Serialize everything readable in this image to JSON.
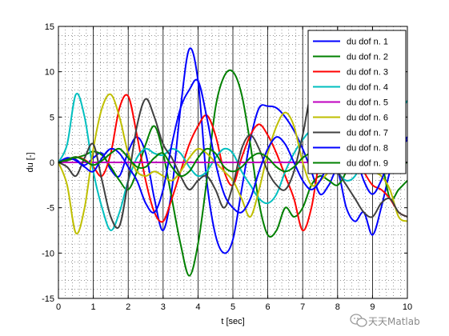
{
  "chart_data": {
    "type": "line",
    "xlabel": "t [sec]",
    "ylabel": "du [-]",
    "xlim": [
      0,
      10
    ],
    "ylim": [
      -15,
      15
    ],
    "xticks": [
      0,
      1,
      2,
      3,
      4,
      5,
      6,
      7,
      8,
      9,
      10
    ],
    "yticks": [
      -15,
      -10,
      -5,
      0,
      5,
      10,
      15
    ],
    "xtick_labels": [
      "0",
      "1",
      "2",
      "3",
      "4",
      "5",
      "6",
      "7",
      "8",
      "9",
      "10"
    ],
    "ytick_labels": [
      "-15",
      "-10",
      "-5",
      "0",
      "5",
      "10",
      "15"
    ],
    "grid": "dotted minor, solid major x",
    "legend_position": "top-right",
    "series": [
      {
        "name": "du dof n. 1",
        "color": "#0000ff",
        "x": [
          0,
          0.25,
          0.5,
          0.75,
          1,
          1.25,
          1.5,
          1.75,
          2,
          2.25,
          2.5,
          2.75,
          3,
          3.25,
          3.5,
          3.75,
          4,
          4.25,
          4.5,
          4.75,
          5,
          5.25,
          5.5,
          5.75,
          6,
          6.25,
          6.5,
          6.75,
          7,
          7.25,
          7.5,
          7.75,
          8,
          8.25,
          8.5,
          8.75,
          9,
          9.25,
          9.5,
          9.75,
          10
        ],
        "y": [
          0,
          0.4,
          0.3,
          -0.3,
          0.5,
          1.0,
          -0.8,
          -1.5,
          1.2,
          2.8,
          1.0,
          -4.0,
          -7.5,
          -3.0,
          6.0,
          12.5,
          9.0,
          -2.0,
          -8.0,
          -10.0,
          -8.5,
          -3.0,
          2.5,
          6.0,
          6.2,
          6.0,
          5.0,
          3.5,
          1.5,
          -1.0,
          -3.5,
          -2.5,
          -1.0,
          -5.0,
          -6.5,
          -5.5,
          -8.0,
          -5.0,
          -1.0,
          1.5,
          2.8
        ]
      },
      {
        "name": "du dof n. 2",
        "color": "#008000",
        "x": [
          0,
          0.25,
          0.5,
          0.75,
          1,
          1.25,
          1.5,
          1.75,
          2,
          2.25,
          2.5,
          2.75,
          3,
          3.25,
          3.5,
          3.75,
          4,
          4.25,
          4.5,
          4.75,
          5,
          5.25,
          5.5,
          5.75,
          6,
          6.25,
          6.5,
          6.75,
          7,
          7.25,
          7.5,
          7.75,
          8,
          8.25,
          8.5,
          8.75,
          9,
          9.25,
          9.5,
          9.75,
          10
        ],
        "y": [
          0,
          0.2,
          0.5,
          0.8,
          1.2,
          0.8,
          -0.5,
          -2.0,
          -3.0,
          -1.0,
          2.0,
          4.0,
          1.0,
          -4.0,
          -9.0,
          -12.5,
          -9.0,
          -2.0,
          6.0,
          9.5,
          10.0,
          7.5,
          2.0,
          -4.5,
          -8.0,
          -7.5,
          -5.0,
          -6.0,
          -5.0,
          -2.5,
          -1.5,
          -2.0,
          -2.5,
          -1.0,
          1.5,
          3.5,
          4.0,
          0.5,
          -4.0,
          -3.0,
          -2.0
        ]
      },
      {
        "name": "du dof n. 3",
        "color": "#ff0000",
        "x": [
          0,
          0.25,
          0.5,
          0.75,
          1,
          1.25,
          1.5,
          1.75,
          2,
          2.25,
          2.5,
          2.75,
          3,
          3.25,
          3.5,
          3.75,
          4,
          4.25,
          4.5,
          4.75,
          5,
          5.25,
          5.5,
          5.75,
          6,
          6.25,
          6.5,
          6.75,
          7,
          7.25,
          7.5,
          7.75,
          8,
          8.25,
          8.5,
          8.75,
          9,
          9.25,
          9.5,
          9.75,
          10
        ],
        "y": [
          0,
          0.3,
          0.6,
          0.3,
          -0.5,
          -1.5,
          1.0,
          6.0,
          7.3,
          3.0,
          -2.0,
          -5.5,
          -6.5,
          -4.0,
          -1.0,
          2.0,
          4.0,
          5.2,
          3.0,
          -1.0,
          -2.5,
          0.5,
          3.0,
          4.2,
          3.0,
          1.0,
          -1.5,
          -4.0,
          -7.5,
          -5.0,
          0.5,
          2.0,
          2.5,
          2.0,
          1.0,
          -1.0,
          -2.5,
          -3.0,
          -4.0,
          -5.5,
          -6.0
        ]
      },
      {
        "name": "du dof n. 4",
        "color": "#00bfbf",
        "x": [
          0,
          0.25,
          0.5,
          0.75,
          1,
          1.25,
          1.5,
          1.75,
          2,
          2.25,
          2.5,
          2.75,
          3,
          3.25,
          3.5,
          3.75,
          4,
          4.25,
          4.5,
          4.75,
          5,
          5.25,
          5.5,
          5.75,
          6,
          6.25,
          6.5,
          6.75,
          7,
          7.25,
          7.5,
          7.75,
          8,
          8.25,
          8.5,
          8.75,
          9,
          9.25,
          9.5,
          9.75,
          10
        ],
        "y": [
          0,
          2.0,
          7.5,
          5.0,
          -1.0,
          -5.0,
          -7.5,
          -5.5,
          -2.0,
          0.5,
          1.5,
          1.0,
          0.8,
          1.5,
          1.0,
          -0.5,
          -1.5,
          -1.0,
          0.5,
          1.5,
          1.0,
          -1.0,
          -2.5,
          -4.0,
          -4.5,
          -3.5,
          -1.0,
          1.0,
          2.5,
          3.5,
          3.0,
          1.0,
          -1.0,
          -2.0,
          -1.5,
          0.5,
          2.5,
          3.5,
          4.0,
          5.5,
          6.8
        ]
      },
      {
        "name": "du dof n. 5",
        "color": "#bf00bf",
        "x": [
          0,
          1,
          2,
          3,
          4,
          5,
          6,
          7,
          8,
          9,
          10
        ],
        "y": [
          0,
          0,
          0,
          0,
          0,
          0,
          0,
          0,
          0,
          0,
          0
        ]
      },
      {
        "name": "du dof n. 6",
        "color": "#bfbf00",
        "x": [
          0,
          0.25,
          0.5,
          0.75,
          1,
          1.25,
          1.5,
          1.75,
          2,
          2.25,
          2.5,
          2.75,
          3,
          3.25,
          3.5,
          3.75,
          4,
          4.25,
          4.5,
          4.75,
          5,
          5.25,
          5.5,
          5.75,
          6,
          6.25,
          6.5,
          6.75,
          7,
          7.25,
          7.5,
          7.75,
          8,
          8.25,
          8.5,
          8.75,
          9,
          9.25,
          9.5,
          9.75,
          10
        ],
        "y": [
          0,
          -2.5,
          -7.8,
          -5.0,
          1.5,
          6.0,
          7.5,
          5.0,
          1.0,
          -1.0,
          -1.5,
          -1.0,
          -1.5,
          -2.0,
          -1.0,
          0.5,
          1.5,
          1.0,
          0.0,
          -1.0,
          -2.0,
          -4.0,
          -6.0,
          -3.0,
          1.0,
          4.0,
          5.5,
          4.0,
          0.0,
          -2.5,
          -2.0,
          -1.0,
          0.5,
          1.5,
          1.0,
          -0.5,
          -1.0,
          -1.5,
          -3.0,
          -6.0,
          -6.5
        ]
      },
      {
        "name": "du dof n. 7",
        "color": "#404040",
        "x": [
          0,
          0.25,
          0.5,
          0.75,
          1,
          1.25,
          1.5,
          1.75,
          2,
          2.25,
          2.5,
          2.75,
          3,
          3.25,
          3.5,
          3.75,
          4,
          4.25,
          4.5,
          4.75,
          5,
          5.25,
          5.5,
          5.75,
          6,
          6.25,
          6.5,
          6.75,
          7,
          7.25,
          7.5,
          7.75,
          8,
          8.25,
          8.5,
          8.75,
          9,
          9.25,
          9.5,
          9.75,
          10
        ],
        "y": [
          0,
          -0.5,
          -1.5,
          0.5,
          2.0,
          -2.0,
          -6.0,
          -7.0,
          -2.0,
          4.0,
          7.0,
          5.0,
          2.0,
          0.5,
          -1.5,
          -3.0,
          -2.0,
          -1.5,
          -3.0,
          -5.0,
          -2.5,
          1.5,
          3.0,
          1.5,
          -1.0,
          -2.5,
          -3.0,
          -1.0,
          3.0,
          7.5,
          5.5,
          1.0,
          -1.0,
          -2.5,
          -4.0,
          -5.5,
          -6.0,
          -4.5,
          -4.0,
          -5.5,
          -6.0
        ]
      },
      {
        "name": "du dof n. 8",
        "color": "#0000ff",
        "x": [
          0,
          0.25,
          0.5,
          0.75,
          1,
          1.25,
          1.5,
          1.75,
          2,
          2.25,
          2.5,
          2.75,
          3,
          3.25,
          3.5,
          3.75,
          4,
          4.25,
          4.5,
          4.75,
          5,
          5.25,
          5.5,
          5.75,
          6,
          6.25,
          6.5,
          6.75,
          7,
          7.25,
          7.5,
          7.75,
          8,
          8.25,
          8.5,
          8.75,
          9,
          9.25,
          9.5,
          9.75,
          10
        ],
        "y": [
          0,
          0.5,
          0.2,
          -0.5,
          -1.0,
          0.5,
          1.5,
          1.0,
          -0.5,
          -2.0,
          -4.5,
          -5.5,
          -3.0,
          2.0,
          6.0,
          8.0,
          9.0,
          5.0,
          0.0,
          -3.5,
          -5.0,
          -5.5,
          -4.0,
          -1.0,
          1.5,
          2.8,
          2.0,
          0.0,
          -2.0,
          -3.0,
          -2.0,
          0.0,
          2.0,
          3.0,
          1.0,
          -2.0,
          -3.5,
          -2.0,
          0.5,
          1.5,
          2.5
        ]
      },
      {
        "name": "du dof n. 9",
        "color": "#008000",
        "x": [
          0,
          0.25,
          0.5,
          0.75,
          1,
          1.25,
          1.5,
          1.75,
          2,
          2.25,
          2.5,
          2.75,
          3,
          3.25,
          3.5,
          3.75,
          4,
          4.25,
          4.5,
          4.75,
          5,
          5.25,
          5.5,
          5.75,
          6,
          6.25,
          6.5,
          6.75,
          7,
          7.25,
          7.5,
          7.75,
          8,
          8.25,
          8.5,
          8.75,
          9,
          9.25,
          9.5,
          9.75,
          10
        ],
        "y": [
          0,
          0.3,
          0.6,
          0.2,
          -0.3,
          0.2,
          1.0,
          1.5,
          0.5,
          -0.5,
          -0.5,
          0.5,
          1.0,
          -0.5,
          -1.5,
          -1.0,
          0.5,
          1.5,
          1.0,
          -0.5,
          -1.0,
          -0.5,
          0.5,
          1.0,
          0.5,
          -0.5,
          -1.0,
          -0.5,
          0.5,
          1.0,
          0.5,
          -0.5,
          -1.0,
          -0.5,
          0.5,
          1.0,
          0.5,
          0.0,
          -0.5,
          -0.3,
          0.0
        ]
      }
    ]
  },
  "watermark": {
    "text": "天天Matlab",
    "icon": "wechat-icon"
  }
}
